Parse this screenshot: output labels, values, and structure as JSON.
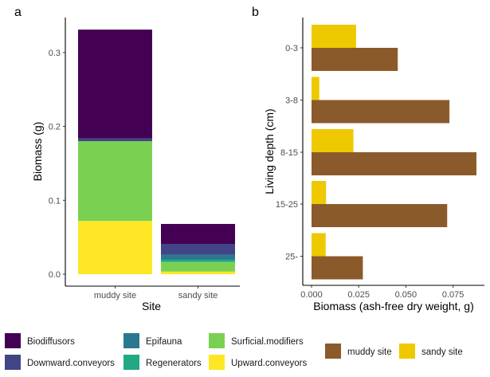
{
  "chart_data": [
    {
      "panel": "a",
      "type": "bar",
      "stacked": true,
      "title": "",
      "xlabel": "Site",
      "ylabel": "Biomass (g)",
      "categories": [
        "muddy site",
        "sandy site"
      ],
      "ylim": [
        0,
        0.33
      ],
      "yticks": [
        0.0,
        0.1,
        0.2,
        0.3
      ],
      "ytick_labels": [
        "0.0",
        "0.1",
        "0.2",
        "0.3"
      ],
      "grid": false,
      "legend_position": "bottom",
      "stack_order_bottom_to_top": [
        "Upward.conveyors",
        "Surficial.modifiers",
        "Regenerators",
        "Epifauna",
        "Downward.conveyors",
        "Biodiffusors"
      ],
      "series": [
        {
          "name": "Biodiffusors",
          "color": "#440154",
          "values": [
            0.147,
            0.027
          ]
        },
        {
          "name": "Downward.conveyors",
          "color": "#414487",
          "values": [
            0.004,
            0.0145
          ]
        },
        {
          "name": "Epifauna",
          "color": "#2A788E",
          "values": [
            0.0,
            0.007
          ]
        },
        {
          "name": "Regenerators",
          "color": "#22A884",
          "values": [
            0.0,
            0.003
          ]
        },
        {
          "name": "Surficial.modifiers",
          "color": "#7AD151",
          "values": [
            0.108,
            0.013
          ]
        },
        {
          "name": "Upward.conveyors",
          "color": "#FDE725",
          "values": [
            0.072,
            0.0035
          ]
        }
      ]
    },
    {
      "panel": "b",
      "type": "bar",
      "orientation": "horizontal",
      "grouped": true,
      "title": "",
      "xlabel": "Biomass (ash-free dry weight, g)",
      "ylabel": "Living depth (cm)",
      "categories": [
        "0-3",
        "3-8",
        "8-15",
        "15-25",
        "25-"
      ],
      "xlim": [
        0,
        0.09
      ],
      "xticks": [
        0.0,
        0.025,
        0.05,
        0.075
      ],
      "xtick_labels": [
        "0.000",
        "0.025",
        "0.050",
        "0.075"
      ],
      "grid": false,
      "legend_position": "bottom-right",
      "series": [
        {
          "name": "muddy site",
          "color": "#8B5A2B",
          "values": [
            0.0457,
            0.0731,
            0.0874,
            0.0719,
            0.0272
          ]
        },
        {
          "name": "sandy site",
          "color": "#EEC900",
          "values": [
            0.0236,
            0.0041,
            0.0222,
            0.0077,
            0.0075
          ]
        }
      ]
    }
  ],
  "panel_labels": {
    "a": "a",
    "b": "b"
  },
  "legend_a": {
    "items": [
      {
        "label": "Biodiffusors",
        "color": "#440154"
      },
      {
        "label": "Downward.conveyors",
        "color": "#414487"
      },
      {
        "label": "Epifauna",
        "color": "#2A788E"
      },
      {
        "label": "Regenerators",
        "color": "#22A884"
      },
      {
        "label": "Surficial.modifiers",
        "color": "#7AD151"
      },
      {
        "label": "Upward.conveyors",
        "color": "#FDE725"
      }
    ]
  },
  "legend_b": {
    "items": [
      {
        "label": "muddy site",
        "color": "#8B5A2B"
      },
      {
        "label": "sandy site",
        "color": "#EEC900"
      }
    ]
  }
}
